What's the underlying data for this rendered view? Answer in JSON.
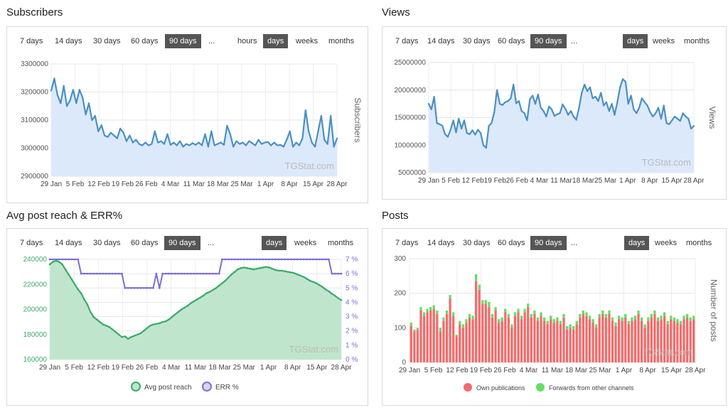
{
  "panels": {
    "subscribers": {
      "title": "Subscribers",
      "ranges": [
        "7 days",
        "14 days",
        "30 days",
        "60 days",
        "90 days",
        "..."
      ],
      "active_range": "90 days",
      "granularity": [
        "hours",
        "days",
        "weeks",
        "months"
      ],
      "active_granularity": "days",
      "watermark": "TGStat.com"
    },
    "views": {
      "title": "Views",
      "ranges": [
        "7 days",
        "14 days",
        "30 days",
        "60 days",
        "90 days",
        "..."
      ],
      "active_range": "90 days",
      "granularity": [
        "days",
        "weeks",
        "months"
      ],
      "active_granularity": "days",
      "watermark": "TGStat.com"
    },
    "reach": {
      "title": "Avg post reach & ERR%",
      "ranges": [
        "7 days",
        "14 days",
        "30 days",
        "60 days",
        "90 days",
        "..."
      ],
      "active_range": "90 days",
      "granularity": [
        "days",
        "weeks",
        "months"
      ],
      "active_granularity": "days",
      "watermark": "TGStat.com"
    },
    "posts": {
      "title": "Posts",
      "ranges": [
        "7 days",
        "14 days",
        "30 days",
        "60 days",
        "90 days",
        "..."
      ],
      "active_range": "90 days",
      "granularity": [
        "days",
        "weeks",
        "months"
      ],
      "active_granularity": "days",
      "watermark": "TGStat.com"
    }
  },
  "chart_data": [
    {
      "type": "area",
      "ylabel": "Subscribers",
      "x_ticks": [
        "29 Jan",
        "5 Feb",
        "12 Feb",
        "19 Feb",
        "26 Feb",
        "4 Mar",
        "11 Mar",
        "18 Mar",
        "25 Mar",
        "1 Apr",
        "8 Apr",
        "15 Apr",
        "28 Apr"
      ],
      "y_ticks": [
        "2900000",
        "3000000",
        "3100000",
        "3200000",
        "3300000"
      ],
      "ylim": [
        2900000,
        3300000
      ],
      "grid": true,
      "color": "#4a90c4",
      "fill": "#dce9fb",
      "series": [
        {
          "values": [
            3205000,
            3248000,
            3190000,
            3160000,
            3222000,
            3150000,
            3170000,
            3208000,
            3160000,
            3208000,
            3180000,
            3120000,
            3160000,
            3100000,
            3115000,
            3060000,
            3082000,
            3045000,
            3040000,
            3055000,
            3045000,
            3035000,
            3070000,
            3055000,
            3025000,
            3045000,
            3020000,
            3030000,
            3015000,
            3010000,
            3020000,
            3010000,
            3015000,
            3060000,
            3020000,
            3025000,
            3015000,
            3050000,
            3012000,
            3020000,
            3010000,
            3025000,
            3005000,
            3015000,
            3010000,
            3018000,
            3012000,
            3020000,
            3010000,
            3050000,
            3005000,
            3060000,
            3010000,
            3015000,
            3020000,
            3012000,
            3080000,
            3050000,
            3005000,
            3025000,
            3015000,
            3020000,
            3010000,
            3025000,
            3018000,
            3010000,
            3030000,
            3015000,
            3020000,
            3022000,
            3010000,
            3020000,
            3010000,
            3012000,
            3005000,
            3030000,
            3060000,
            3005000,
            3020000,
            3010000,
            3035000,
            3135000,
            3060000,
            3020000,
            3005000,
            3060000,
            3115000,
            3030000,
            3015000,
            3115000,
            3005000,
            3035000
          ]
        }
      ]
    },
    {
      "type": "area",
      "ylabel": "Views",
      "x_ticks": [
        "29 Jan",
        "5 Feb",
        "12 Feb",
        "19 Feb",
        "26 Feb",
        "4 Mar",
        "11 Mar",
        "18 Mar",
        "25 Mar",
        "1 Apr",
        "8 Apr",
        "15 Apr",
        "28 Apr"
      ],
      "y_ticks": [
        "5000000",
        "10000000",
        "15000000",
        "20000000",
        "25000000"
      ],
      "ylim": [
        5000000,
        25000000
      ],
      "grid": true,
      "color": "#4a90c4",
      "fill": "#dce9fb",
      "series": [
        {
          "values": [
            17500000,
            16500000,
            18800000,
            14000000,
            13800000,
            13500000,
            12000000,
            11500000,
            12800000,
            14500000,
            12300000,
            14800000,
            13000000,
            14500000,
            12200000,
            12000000,
            12700000,
            11900000,
            12800000,
            12200000,
            10000000,
            9500000,
            13500000,
            14000000,
            16000000,
            20000000,
            17500000,
            17300000,
            17800000,
            18000000,
            18500000,
            21000000,
            17600000,
            18000000,
            16200000,
            15800000,
            14500000,
            18300000,
            19000000,
            17500000,
            19200000,
            16800000,
            16200000,
            15200000,
            17000000,
            16500000,
            15300000,
            15600000,
            15800000,
            17400000,
            16600000,
            15500000,
            16200000,
            15200000,
            14600000,
            16800000,
            19500000,
            21000000,
            19800000,
            20500000,
            18500000,
            18800000,
            18000000,
            19500000,
            17200000,
            17800000,
            16200000,
            17500000,
            15500000,
            17800000,
            20500000,
            22000000,
            21500000,
            17500000,
            19000000,
            16500000,
            15800000,
            16800000,
            18500000,
            17800000,
            17200000,
            16000000,
            15200000,
            15800000,
            16800000,
            14800000,
            17200000,
            14000000,
            13800000,
            14500000,
            15200000,
            14800000,
            14400000,
            15800000,
            15200000,
            14800000,
            13000000,
            13500000
          ]
        }
      ]
    },
    {
      "type": "area",
      "x_ticks": [
        "29 Jan",
        "5 Feb",
        "12 Feb",
        "19 Feb",
        "26 Feb",
        "4 Mar",
        "11 Mar",
        "18 Mar",
        "25 Mar",
        "1 Apr",
        "8 Apr",
        "15 Apr",
        "28 Apr"
      ],
      "y_ticks_left": [
        "160000",
        "180000",
        "200000",
        "220000",
        "240000"
      ],
      "y_ticks_right": [
        "0 %",
        "1 %",
        "2 %",
        "3 %",
        "4 %",
        "5 %",
        "6 %",
        "7 %"
      ],
      "ylim": [
        160000,
        240000
      ],
      "ylim_right": [
        0,
        7
      ],
      "grid": true,
      "legend_placement": "bottom",
      "series": [
        {
          "name": "Avg post reach",
          "color": "#3daa6a",
          "fill": "#bfe6cc",
          "values": [
            236000,
            238000,
            239000,
            238000,
            236000,
            232000,
            228000,
            224000,
            220000,
            216000,
            213000,
            208000,
            204000,
            198000,
            194000,
            192000,
            190000,
            188000,
            187000,
            186000,
            184000,
            182000,
            180000,
            178000,
            178500,
            176500,
            178000,
            179000,
            180000,
            181000,
            183000,
            185000,
            187000,
            188000,
            188500,
            189000,
            190000,
            190500,
            192000,
            194000,
            196000,
            198000,
            200000,
            201500,
            203000,
            205000,
            206500,
            208000,
            209500,
            211000,
            213000,
            214000,
            215500,
            217000,
            219000,
            221000,
            223000,
            225500,
            228000,
            230000,
            232000,
            233000,
            233500,
            233000,
            232500,
            232000,
            232500,
            233000,
            233500,
            234000,
            233500,
            232500,
            231500,
            231000,
            231000,
            230500,
            230000,
            229500,
            229000,
            228000,
            227000,
            226000,
            224500,
            223000,
            222000,
            221000,
            219500,
            218000,
            216000,
            214500,
            212500,
            211000,
            209000,
            207500
          ]
        },
        {
          "name": "ERR %",
          "color": "#7b6fd6",
          "values": [
            7,
            7,
            7,
            7,
            7,
            7,
            7,
            7,
            7,
            7,
            6,
            6,
            6,
            6,
            6,
            6,
            6,
            6,
            6,
            6,
            6,
            6,
            6,
            6,
            5,
            5,
            5,
            5,
            5,
            5,
            5,
            5,
            5,
            5,
            6,
            5,
            6,
            6,
            6,
            6,
            6,
            6,
            6,
            6,
            6,
            6,
            6,
            6,
            6,
            6,
            6,
            6,
            6,
            6,
            6,
            7,
            7,
            7,
            7,
            7,
            7,
            7,
            7,
            7,
            7,
            7,
            7,
            7,
            7,
            7,
            7,
            7,
            7,
            7,
            7,
            7,
            7,
            7,
            7,
            7,
            7,
            7,
            7,
            7,
            7,
            7,
            7,
            7,
            7,
            7,
            6,
            6,
            6,
            6
          ]
        }
      ]
    },
    {
      "type": "bar",
      "ylabel": "Number of posts",
      "x_ticks": [
        "29 Jan",
        "5 Feb",
        "12 Feb",
        "19 Feb",
        "26 Feb",
        "4 Mar",
        "11 Mar",
        "18 Mar",
        "25 Mar",
        "1 Apr",
        "8 Apr",
        "15 Apr",
        "28 Apr"
      ],
      "y_ticks": [
        "0",
        "100",
        "200",
        "300"
      ],
      "ylim": [
        0,
        300
      ],
      "grid": true,
      "stacked": true,
      "legend_placement": "bottom",
      "series": [
        {
          "name": "Own publications",
          "color": "#f26c6c",
          "values": [
            105,
            90,
            95,
            150,
            135,
            145,
            150,
            155,
            140,
            90,
            120,
            140,
            185,
            135,
            75,
            110,
            100,
            115,
            130,
            125,
            235,
            210,
            170,
            170,
            160,
            130,
            150,
            115,
            120,
            145,
            130,
            100,
            135,
            145,
            125,
            145,
            160,
            130,
            140,
            120,
            135,
            120,
            110,
            125,
            115,
            120,
            110,
            130,
            95,
            100,
            95,
            110,
            130,
            140,
            135,
            125,
            115,
            100,
            130,
            140,
            130,
            140,
            120,
            105,
            125,
            120,
            130,
            110,
            120,
            125,
            140,
            120,
            100,
            120,
            130,
            140,
            120,
            125,
            135,
            110,
            125,
            120,
            115,
            110,
            125,
            130,
            120,
            125
          ]
        },
        {
          "name": "Forwards from other channels",
          "color": "#66dd66",
          "values": [
            10,
            5,
            5,
            10,
            10,
            10,
            10,
            10,
            10,
            10,
            10,
            10,
            10,
            10,
            5,
            10,
            10,
            10,
            10,
            10,
            20,
            15,
            10,
            10,
            15,
            10,
            10,
            10,
            10,
            10,
            10,
            10,
            10,
            10,
            10,
            10,
            10,
            10,
            10,
            10,
            10,
            10,
            10,
            10,
            10,
            10,
            10,
            10,
            10,
            10,
            10,
            10,
            10,
            10,
            10,
            10,
            10,
            10,
            10,
            10,
            10,
            10,
            10,
            10,
            10,
            10,
            10,
            10,
            10,
            10,
            10,
            10,
            10,
            10,
            10,
            10,
            10,
            10,
            10,
            10,
            10,
            10,
            10,
            10,
            10,
            10,
            10,
            10
          ]
        }
      ]
    }
  ]
}
